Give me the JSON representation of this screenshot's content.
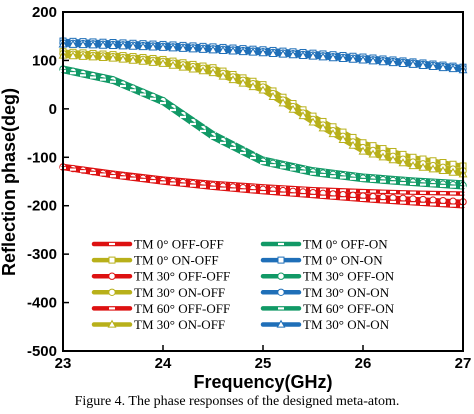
{
  "caption": "Figure 4. The phase responses of the designed meta-atom.",
  "chart_data": {
    "type": "line",
    "xlabel": "Frequency(GHz)",
    "ylabel": "Reflection phase(deg)",
    "xlim": [
      23,
      27
    ],
    "ylim": [
      -500,
      200
    ],
    "xticks": [
      23,
      24,
      25,
      26,
      27
    ],
    "yticks": [
      200,
      100,
      0,
      -100,
      -200,
      -300,
      -400,
      -500
    ],
    "legend_position": "lower-left",
    "series": [
      {
        "name": "TM 0° OFF-OFF",
        "color": "#dd1111",
        "marker": "line",
        "x": [
          23,
          23.5,
          24,
          24.5,
          25,
          25.5,
          26,
          26.5,
          27
        ],
        "y": [
          -118,
          -132,
          -144,
          -153,
          -160,
          -166,
          -170,
          -173,
          -175
        ]
      },
      {
        "name": "TM 0° OFF-ON",
        "color": "#119966",
        "marker": "line",
        "x": [
          23,
          23.5,
          24,
          24.5,
          25,
          25.5,
          26,
          26.5,
          27
        ],
        "y": [
          85,
          63,
          20,
          -50,
          -103,
          -125,
          -138,
          -146,
          -152
        ]
      },
      {
        "name": "TM 0° ON-OFF",
        "color": "#b8b01a",
        "marker": "square",
        "x": [
          23,
          23.5,
          24,
          24.5,
          25,
          25.5,
          26,
          26.5,
          27
        ],
        "y": [
          118,
          112,
          102,
          85,
          50,
          -15,
          -70,
          -100,
          -118
        ]
      },
      {
        "name": "TM 0° ON-ON",
        "color": "#1f6fb8",
        "marker": "square",
        "x": [
          23,
          23.5,
          24,
          24.5,
          25,
          25.5,
          26,
          26.5,
          27
        ],
        "y": [
          140,
          137,
          133,
          128,
          122,
          115,
          107,
          97,
          86
        ]
      },
      {
        "name": "TM 30° OFF-OFF",
        "color": "#dd1111",
        "marker": "circle",
        "x": [
          23,
          23.5,
          24,
          24.5,
          25,
          25.5,
          26,
          26.5,
          27
        ],
        "y": [
          -120,
          -136,
          -148,
          -158,
          -166,
          -173,
          -180,
          -186,
          -192
        ]
      },
      {
        "name": "TM 30° OFF-ON",
        "color": "#119966",
        "marker": "circle",
        "x": [
          23,
          23.5,
          24,
          24.5,
          25,
          25.5,
          26,
          26.5,
          27
        ],
        "y": [
          82,
          60,
          17,
          -55,
          -108,
          -130,
          -143,
          -151,
          -158
        ]
      },
      {
        "name": "TM 30° ON-OFF",
        "color": "#b8b01a",
        "marker": "circle",
        "x": [
          23,
          23.5,
          24,
          24.5,
          25,
          25.5,
          26,
          26.5,
          27
        ],
        "y": [
          114,
          108,
          98,
          80,
          45,
          -22,
          -80,
          -110,
          -128
        ]
      },
      {
        "name": "TM 30° ON-ON",
        "color": "#1f6fb8",
        "marker": "circle",
        "x": [
          23,
          23.5,
          24,
          24.5,
          25,
          25.5,
          26,
          26.5,
          27
        ],
        "y": [
          136,
          133,
          129,
          124,
          118,
          111,
          103,
          94,
          83
        ]
      },
      {
        "name": "TM 60° OFF-OFF",
        "color": "#dd1111",
        "marker": "line",
        "x": [
          23,
          23.5,
          24,
          24.5,
          25,
          25.5,
          26,
          26.5,
          27
        ],
        "y": [
          -122,
          -139,
          -152,
          -163,
          -172,
          -180,
          -188,
          -195,
          -201
        ]
      },
      {
        "name": "TM 60° OFF-ON",
        "color": "#119966",
        "marker": "line",
        "x": [
          23,
          23.5,
          24,
          24.5,
          25,
          25.5,
          26,
          26.5,
          27
        ],
        "y": [
          78,
          56,
          12,
          -60,
          -112,
          -134,
          -147,
          -155,
          -162
        ]
      },
      {
        "name": "TM 30° ON-OFF",
        "color": "#b8b01a",
        "marker": "triangle",
        "x": [
          23,
          23.5,
          24,
          24.5,
          25,
          25.5,
          26,
          26.5,
          27
        ],
        "y": [
          110,
          104,
          93,
          74,
          38,
          -28,
          -88,
          -118,
          -135
        ]
      },
      {
        "name": "TM 30° ON-ON",
        "color": "#1f6fb8",
        "marker": "triangle",
        "x": [
          23,
          23.5,
          24,
          24.5,
          25,
          25.5,
          26,
          26.5,
          27
        ],
        "y": [
          133,
          130,
          126,
          121,
          115,
          108,
          100,
          91,
          80
        ]
      }
    ]
  }
}
